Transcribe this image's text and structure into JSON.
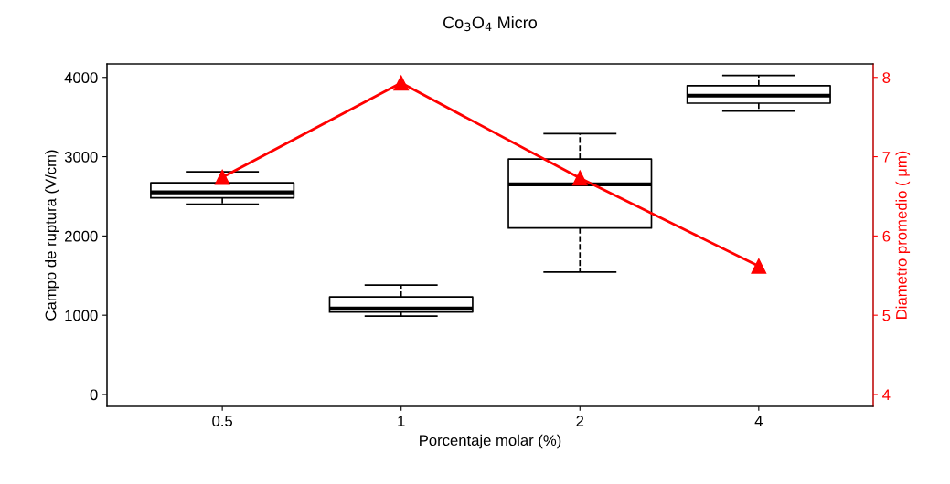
{
  "chart_data": {
    "type": "box",
    "title": "Co$_{3}$O$_{4}$ Micro",
    "xlabel": "Porcentaje molar (%)",
    "ylabel": "Campo de ruptura (V/cm)",
    "y2label": "Diametro promedio ( μm)",
    "categories": [
      "0.5",
      "1",
      "2",
      "4"
    ],
    "boxes": [
      {
        "low": 2400,
        "q1": 2480,
        "median": 2550,
        "q3": 2670,
        "high": 2810
      },
      {
        "low": 990,
        "q1": 1040,
        "median": 1085,
        "q3": 1230,
        "high": 1380
      },
      {
        "low": 1545,
        "q1": 2100,
        "median": 2650,
        "q3": 2970,
        "high": 3290
      },
      {
        "low": 3575,
        "q1": 3675,
        "median": 3770,
        "q3": 3895,
        "high": 4025
      }
    ],
    "color": "#000000",
    "line_style": "dashed",
    "series": [
      {
        "type": "line",
        "axis": "y2",
        "color": "#ff0000",
        "marker": "triangle",
        "line_style": "solid",
        "values": [
          6.74,
          7.93,
          6.73,
          5.62
        ]
      }
    ],
    "ylim": [
      -150,
      4170
    ],
    "yticks": [
      0,
      1000,
      2000,
      3000,
      4000
    ],
    "y2lim": [
      3.85,
      8.17
    ],
    "y2ticks": [
      4,
      5,
      6,
      7,
      8
    ],
    "grid": false,
    "legend": false
  }
}
